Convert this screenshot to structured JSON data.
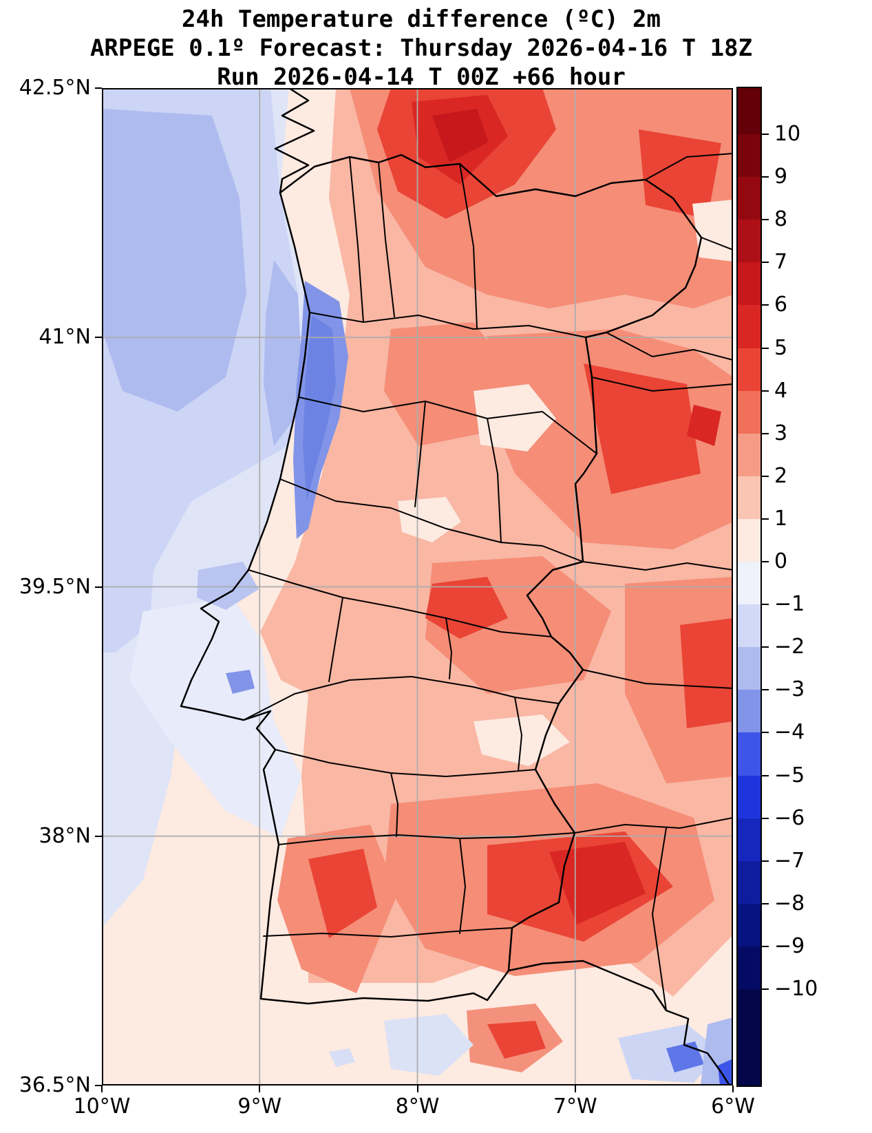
{
  "title": {
    "line1": "24h Temperature difference (ºC) 2m",
    "line2": "ARPEGE 0.1º Forecast: Thursday 2026-04-16 T 18Z",
    "line3": "Run 2026-04-14 T 00Z +66 hour"
  },
  "chart_data": {
    "type": "heatmap",
    "variable": "24h temperature difference at 2 m (ºC)",
    "model": "ARPEGE 0.1º",
    "forecast_valid": "Thursday 2026-04-16 T 18Z",
    "run": "2026-04-14 T 00Z",
    "lead_time_hours": 66,
    "region": "Portugal and western Iberia",
    "grid": "on",
    "lat_range": [
      36.5,
      42.5
    ],
    "lon_range_deg_west": [
      10,
      6
    ],
    "axes": {
      "x": {
        "ticks": [
          {
            "label": "10°W",
            "value": 10
          },
          {
            "label": "9°W",
            "value": 9
          },
          {
            "label": "8°W",
            "value": 8
          },
          {
            "label": "7°W",
            "value": 7
          },
          {
            "label": "6°W",
            "value": 6
          }
        ]
      },
      "y": {
        "ticks": [
          {
            "label": "42.5°N",
            "value": 42.5
          },
          {
            "label": "41°N",
            "value": 41
          },
          {
            "label": "39.5°N",
            "value": 39.5
          },
          {
            "label": "38°N",
            "value": 38
          },
          {
            "label": "36.5°N",
            "value": 36.5
          }
        ]
      }
    },
    "colorbar": {
      "position": "right",
      "units": "ºC",
      "ticks": [
        {
          "label": "10",
          "value": 10
        },
        {
          "label": "9",
          "value": 9
        },
        {
          "label": "8",
          "value": 8
        },
        {
          "label": "7",
          "value": 7
        },
        {
          "label": "6",
          "value": 6
        },
        {
          "label": "5",
          "value": 5
        },
        {
          "label": "4",
          "value": 4
        },
        {
          "label": "3",
          "value": 3
        },
        {
          "label": "2",
          "value": 2
        },
        {
          "label": "1",
          "value": 1
        },
        {
          "label": "0",
          "value": 0
        },
        {
          "label": "−1",
          "value": -1
        },
        {
          "label": "−2",
          "value": -2
        },
        {
          "label": "−3",
          "value": -3
        },
        {
          "label": "−4",
          "value": -4
        },
        {
          "label": "−5",
          "value": -5
        },
        {
          "label": "−6",
          "value": -6
        },
        {
          "label": "−7",
          "value": -7
        },
        {
          "label": "−8",
          "value": -8
        },
        {
          "label": "−9",
          "value": -9
        },
        {
          "label": "−10",
          "value": -10
        }
      ],
      "cells": [
        {
          "range": "> 10",
          "color": "#640008"
        },
        {
          "range": "9 to 10",
          "color": "#7a040c"
        },
        {
          "range": "8 to 9",
          "color": "#93090f"
        },
        {
          "range": "7 to 8",
          "color": "#ad1016"
        },
        {
          "range": "6 to 7",
          "color": "#c6181d"
        },
        {
          "range": "5 to 6",
          "color": "#da2723"
        },
        {
          "range": "4 to 5",
          "color": "#e94435"
        },
        {
          "range": "3 to 4",
          "color": "#f1705a"
        },
        {
          "range": "2 to 3",
          "color": "#f69c86"
        },
        {
          "range": "1 to 2",
          "color": "#fac5b2"
        },
        {
          "range": "0 to 1",
          "color": "#fdeae1"
        },
        {
          "range": "−1 to 0",
          "color": "#eff1fb"
        },
        {
          "range": "−2 to −1",
          "color": "#d2d9f6"
        },
        {
          "range": "−3 to −2",
          "color": "#aebbef"
        },
        {
          "range": "−4 to −3",
          "color": "#8194e7"
        },
        {
          "range": "−5 to −4",
          "color": "#3d55e8"
        },
        {
          "range": "−6 to −5",
          "color": "#1e34dd"
        },
        {
          "range": "−7 to −6",
          "color": "#1527bd"
        },
        {
          "range": "−8 to −7",
          "color": "#0e1c9e"
        },
        {
          "range": "−9 to −8",
          "color": "#081280"
        },
        {
          "range": "−10 to −9",
          "color": "#050b64"
        },
        {
          "range": "< −10",
          "color": "#03074a"
        }
      ]
    },
    "field_summary": [
      {
        "region": "Atlantic Ocean west of Portugal",
        "value_c": "−1 to −3"
      },
      {
        "region": "Northwest coastal strip (Porto–Aveiro)",
        "value_c": "−3 to −4"
      },
      {
        "region": "Northern interior Portugal and Galicia border",
        "value_c": "+3 to +6"
      },
      {
        "region": "Central interior and Spanish border",
        "value_c": "+2 to +4"
      },
      {
        "region": "Alentejo and southern interior",
        "value_c": "+3 to +5"
      },
      {
        "region": "Lisbon peninsula and southwest coast",
        "value_c": "0 to +1"
      },
      {
        "region": "South coast waters / Gulf of Cádiz",
        "value_c": "−2 to +1 with small cold patches"
      }
    ]
  }
}
